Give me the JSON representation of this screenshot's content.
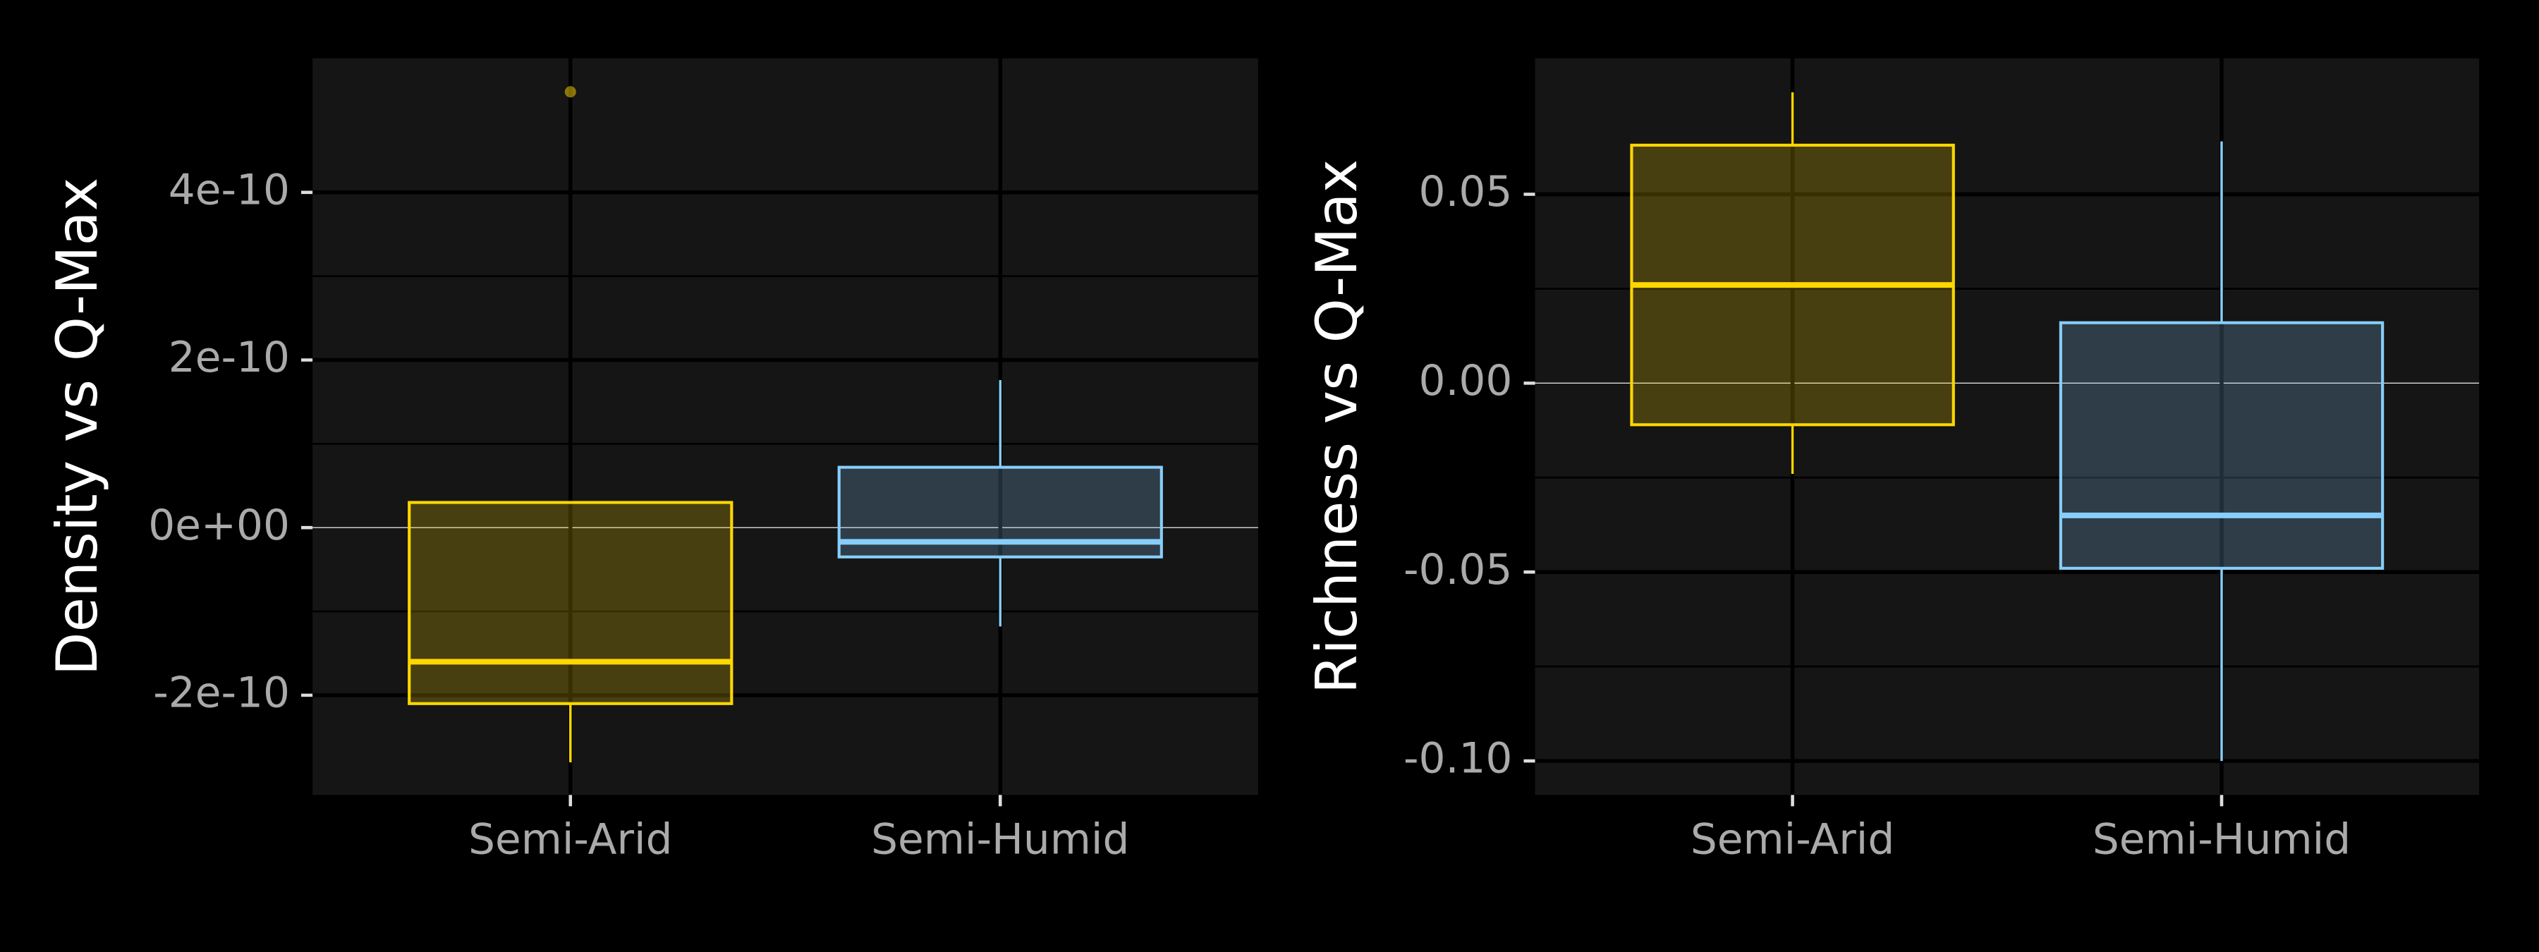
{
  "chart_data": [
    {
      "type": "box",
      "y_label": "Density vs Q-Max",
      "categories": [
        "Semi-Arid",
        "Semi-Humid"
      ],
      "boxes": [
        {
          "color": "#FFD700",
          "low": -2.8e-10,
          "q1": -2.1e-10,
          "median": -1.6e-10,
          "q3": 3e-11,
          "high": 3e-11,
          "outliers": [
            5.2e-10
          ]
        },
        {
          "color": "#87CEFA",
          "low": -1.18e-10,
          "q1": -3.5e-11,
          "median": -1.7e-11,
          "q3": 7.2e-11,
          "high": 1.76e-10,
          "outliers": []
        }
      ],
      "ylim": [
        -3.19e-10,
        5.6e-10
      ],
      "yticks": [
        {
          "value": -2e-10,
          "label": "-2e-10"
        },
        {
          "value": 0,
          "label": "0e+00"
        },
        {
          "value": 2e-10,
          "label": "2e-10"
        },
        {
          "value": 4e-10,
          "label": "4e-10"
        }
      ],
      "grid": true
    },
    {
      "type": "box",
      "y_label": "Richness vs Q-Max",
      "categories": [
        "Semi-Arid",
        "Semi-Humid"
      ],
      "boxes": [
        {
          "color": "#FFD700",
          "low": -0.024,
          "q1": -0.011,
          "median": 0.026,
          "q3": 0.063,
          "high": 0.077,
          "outliers": []
        },
        {
          "color": "#87CEFA",
          "low": -0.1,
          "q1": -0.049,
          "median": -0.035,
          "q3": 0.016,
          "high": 0.064,
          "outliers": []
        }
      ],
      "ylim": [
        -0.109,
        0.086
      ],
      "yticks": [
        {
          "value": -0.1,
          "label": "-0.10"
        },
        -0.05,
        {
          "value": 0,
          "label": "0.00"
        },
        0.05
      ],
      "grid": true
    }
  ]
}
